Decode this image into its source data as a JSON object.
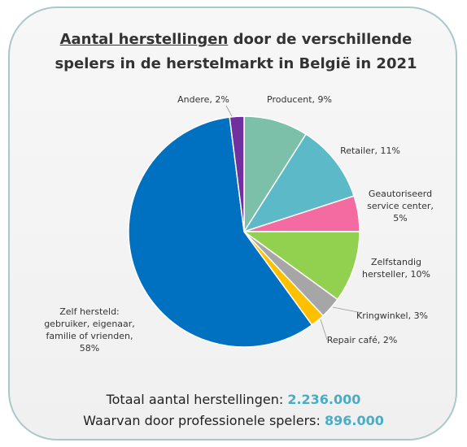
{
  "chart_data": {
    "type": "pie",
    "title": {
      "emphasis": "Aantal herstellingen",
      "rest": "door de verschillende spelers in de herstelmarkt in België in 2021"
    },
    "categories": [
      "Producent",
      "Retailer",
      "Geautoriseerd service center",
      "Zelfstandig hersteller",
      "Kringwinkel",
      "Repair café",
      "Zelf hersteld: gebruiker, eigenaar, familie of vrienden",
      "Andere"
    ],
    "values": [
      9,
      11,
      5,
      10,
      3,
      2,
      58,
      2
    ],
    "value_labels": [
      "9%",
      "11%",
      "5%",
      "10%",
      "3%",
      "2%",
      "58%",
      "2%"
    ],
    "colors": [
      "#7cc0aa",
      "#5cb9c7",
      "#f46ba1",
      "#92d050",
      "#a6a6a6",
      "#ffc000",
      "#0070c0",
      "#7030a0"
    ],
    "footer": [
      {
        "label": "Totaal aantal herstellingen:",
        "value": "2.236.000"
      },
      {
        "label": "Waarvan door professionele spelers:",
        "value": "896.000"
      }
    ]
  }
}
